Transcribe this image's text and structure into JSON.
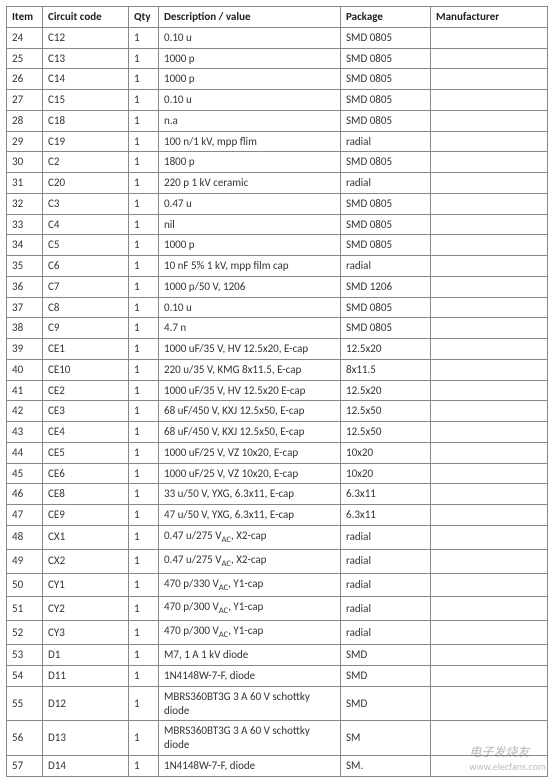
{
  "table": {
    "headers": {
      "item": "Item",
      "code": "Circuit code",
      "qty": "Qty",
      "desc": "Description / value",
      "pkg": "Package",
      "manu": "Manufacturer"
    },
    "rows": [
      {
        "item": "24",
        "code": "C12",
        "qty": "1",
        "desc": "0.10 u",
        "pkg": "SMD 0805",
        "manu": ""
      },
      {
        "item": "25",
        "code": "C13",
        "qty": "1",
        "desc": "1000 p",
        "pkg": "SMD 0805",
        "manu": ""
      },
      {
        "item": "26",
        "code": "C14",
        "qty": "1",
        "desc": "1000 p",
        "pkg": "SMD 0805",
        "manu": ""
      },
      {
        "item": "27",
        "code": "C15",
        "qty": "1",
        "desc": "0.10 u",
        "pkg": "SMD 0805",
        "manu": ""
      },
      {
        "item": "28",
        "code": "C18",
        "qty": "1",
        "desc": "n.a",
        "pkg": "SMD 0805",
        "manu": ""
      },
      {
        "item": "29",
        "code": "C19",
        "qty": "1",
        "desc": "100 n/1 kV, mpp flim",
        "pkg": "radial",
        "manu": ""
      },
      {
        "item": "30",
        "code": "C2",
        "qty": "1",
        "desc": "1800 p",
        "pkg": "SMD 0805",
        "manu": ""
      },
      {
        "item": "31",
        "code": "C20",
        "qty": "1",
        "desc": "220 p 1 kV ceramic",
        "pkg": "radial",
        "manu": ""
      },
      {
        "item": "32",
        "code": "C3",
        "qty": "1",
        "desc": "0.47 u",
        "pkg": "SMD 0805",
        "manu": ""
      },
      {
        "item": "33",
        "code": "C4",
        "qty": "1",
        "desc": "nil",
        "pkg": "SMD 0805",
        "manu": ""
      },
      {
        "item": "34",
        "code": "C5",
        "qty": "1",
        "desc": "1000 p",
        "pkg": "SMD 0805",
        "manu": ""
      },
      {
        "item": "35",
        "code": "C6",
        "qty": "1",
        "desc": "10 nF 5% 1 kV, mpp film cap",
        "pkg": "radial",
        "manu": ""
      },
      {
        "item": "36",
        "code": "C7",
        "qty": "1",
        "desc": "1000 p/50 V, 1206",
        "pkg": "SMD 1206",
        "manu": ""
      },
      {
        "item": "37",
        "code": "C8",
        "qty": "1",
        "desc": "0.10 u",
        "pkg": "SMD 0805",
        "manu": ""
      },
      {
        "item": "38",
        "code": "C9",
        "qty": "1",
        "desc": "4.7 n",
        "pkg": "SMD 0805",
        "manu": ""
      },
      {
        "item": "39",
        "code": "CE1",
        "qty": "1",
        "desc": "1000 uF/35 V, HV 12.5x20, E-cap",
        "pkg": "12.5x20",
        "manu": ""
      },
      {
        "item": "40",
        "code": "CE10",
        "qty": "1",
        "desc": "220 u/35 V, KMG 8x11.5, E-cap",
        "pkg": "8x11.5",
        "manu": ""
      },
      {
        "item": "41",
        "code": "CE2",
        "qty": "1",
        "desc": "1000 uF/35 V, HV 12.5x20 E-cap",
        "pkg": "12.5x20",
        "manu": ""
      },
      {
        "item": "42",
        "code": "CE3",
        "qty": "1",
        "desc": "68 uF/450 V, KXJ 12.5x50, E-cap",
        "pkg": "12.5x50",
        "manu": ""
      },
      {
        "item": "43",
        "code": "CE4",
        "qty": "1",
        "desc": "68 uF/450 V, KXJ 12.5x50, E-cap",
        "pkg": "12.5x50",
        "manu": ""
      },
      {
        "item": "44",
        "code": "CE5",
        "qty": "1",
        "desc": "1000 uF/25 V, VZ 10x20, E-cap",
        "pkg": "10x20",
        "manu": ""
      },
      {
        "item": "45",
        "code": "CE6",
        "qty": "1",
        "desc": "1000 uF/25 V, VZ 10x20, E-cap",
        "pkg": "10x20",
        "manu": ""
      },
      {
        "item": "46",
        "code": "CE8",
        "qty": "1",
        "desc": "33 u/50 V, YXG, 6.3x11, E-cap",
        "pkg": "6.3x11",
        "manu": ""
      },
      {
        "item": "47",
        "code": "CE9",
        "qty": "1",
        "desc": "47 u/50 V, YXG, 6.3x11, E-cap",
        "pkg": "6.3x11",
        "manu": ""
      },
      {
        "item": "48",
        "code": "CX1",
        "qty": "1",
        "desc": "0.47 u/275 V{AC}, X2-cap",
        "pkg": "radial",
        "manu": ""
      },
      {
        "item": "49",
        "code": "CX2",
        "qty": "1",
        "desc": "0.47 u/275 V{AC}, X2-cap",
        "pkg": "radial",
        "manu": ""
      },
      {
        "item": "50",
        "code": "CY1",
        "qty": "1",
        "desc": "470 p/330 V{AC}, Y1-cap",
        "pkg": "radial",
        "manu": ""
      },
      {
        "item": "51",
        "code": "CY2",
        "qty": "1",
        "desc": "470 p/300 V{AC}, Y1-cap",
        "pkg": "radial",
        "manu": ""
      },
      {
        "item": "52",
        "code": "CY3",
        "qty": "1",
        "desc": "470 p/300 V{AC}, Y1-cap",
        "pkg": "radial",
        "manu": ""
      },
      {
        "item": "53",
        "code": "D1",
        "qty": "1",
        "desc": "M7, 1 A 1 kV diode",
        "pkg": "SMD",
        "manu": ""
      },
      {
        "item": "54",
        "code": "D11",
        "qty": "1",
        "desc": "1N4148W-7-F, diode",
        "pkg": "SMD",
        "manu": ""
      },
      {
        "item": "55",
        "code": "D12",
        "qty": "1",
        "desc": "MBRS360BT3G 3 A 60 V schottky diode",
        "pkg": "SMD",
        "manu": ""
      },
      {
        "item": "56",
        "code": "D13",
        "qty": "1",
        "desc": "MBRS360BT3G 3 A 60 V schottky diode",
        "pkg": "SM",
        "manu": ""
      },
      {
        "item": "57",
        "code": "D14",
        "qty": "1",
        "desc": "1N4148W-7-F, diode",
        "pkg": "SM.",
        "manu": ""
      }
    ]
  },
  "watermark": {
    "brand": "电子发烧友",
    "url": "www.elecfans.com"
  }
}
